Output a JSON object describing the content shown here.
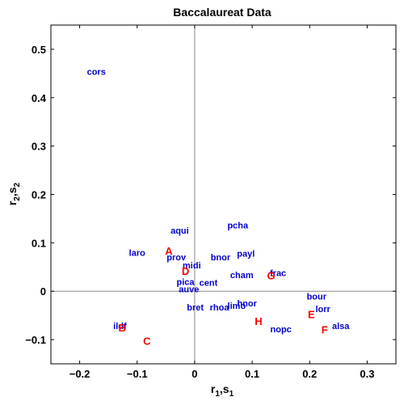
{
  "chart_data": {
    "type": "scatter",
    "title": "Baccalaureat Data",
    "xlabel": {
      "main": "r",
      "sub1": "1",
      "sep": ",s",
      "sub2": "1"
    },
    "ylabel": {
      "main": "r",
      "sub1": "2",
      "sep": ",s",
      "sub2": "2"
    },
    "xlim": [
      -0.25,
      0.35
    ],
    "ylim": [
      -0.15,
      0.55
    ],
    "xticks": [
      -0.2,
      -0.1,
      0,
      0.1,
      0.2,
      0.3
    ],
    "xtick_labels": [
      "−0.2",
      "−0.1",
      "0",
      "0.1",
      "0.2",
      "0.3"
    ],
    "yticks": [
      -0.1,
      0,
      0.1,
      0.2,
      0.3,
      0.4,
      0.5
    ],
    "ytick_labels": [
      "−0.1",
      "0",
      "0.1",
      "0.2",
      "0.3",
      "0.4",
      "0.5"
    ],
    "grid": false,
    "zero_lines": true,
    "colors": {
      "regions": "#0000cc",
      "categories": "#ff0000"
    },
    "series": [
      {
        "group": "regions",
        "points": [
          {
            "label": "cors",
            "x": -0.171,
            "y": 0.452
          },
          {
            "label": "aqui",
            "x": -0.026,
            "y": 0.124
          },
          {
            "label": "pcha",
            "x": 0.075,
            "y": 0.135
          },
          {
            "label": "laro",
            "x": -0.1,
            "y": 0.078
          },
          {
            "label": "prov",
            "x": -0.032,
            "y": 0.069
          },
          {
            "label": "payl",
            "x": 0.089,
            "y": 0.076
          },
          {
            "label": "bnor",
            "x": 0.045,
            "y": 0.069
          },
          {
            "label": "midi",
            "x": -0.005,
            "y": 0.052
          },
          {
            "label": "cham",
            "x": 0.082,
            "y": 0.032
          },
          {
            "label": "frac",
            "x": 0.145,
            "y": 0.036
          },
          {
            "label": "pica",
            "x": -0.016,
            "y": 0.018
          },
          {
            "label": "cent",
            "x": 0.024,
            "y": 0.016
          },
          {
            "label": "auve",
            "x": -0.01,
            "y": 0.003
          },
          {
            "label": "bour",
            "x": 0.212,
            "y": -0.012
          },
          {
            "label": "bret",
            "x": 0.001,
            "y": -0.035
          },
          {
            "label": "rhoa",
            "x": 0.043,
            "y": -0.035
          },
          {
            "label": "limo",
            "x": 0.073,
            "y": -0.031
          },
          {
            "label": "hnor",
            "x": 0.091,
            "y": -0.026
          },
          {
            "label": "lorr",
            "x": 0.223,
            "y": -0.038
          },
          {
            "label": "ildf",
            "x": -0.13,
            "y": -0.073
          },
          {
            "label": "nopc",
            "x": 0.15,
            "y": -0.08
          },
          {
            "label": "alsa",
            "x": 0.254,
            "y": -0.073
          }
        ]
      },
      {
        "group": "categories",
        "points": [
          {
            "label": "A",
            "x": -0.045,
            "y": 0.083
          },
          {
            "label": "D",
            "x": -0.016,
            "y": 0.041
          },
          {
            "label": "G",
            "x": 0.133,
            "y": 0.032
          },
          {
            "label": "E",
            "x": 0.203,
            "y": -0.048
          },
          {
            "label": "H",
            "x": 0.111,
            "y": -0.062
          },
          {
            "label": "B",
            "x": -0.126,
            "y": -0.076
          },
          {
            "label": "F",
            "x": 0.226,
            "y": -0.08
          },
          {
            "label": "C",
            "x": -0.083,
            "y": -0.103
          }
        ]
      }
    ]
  }
}
